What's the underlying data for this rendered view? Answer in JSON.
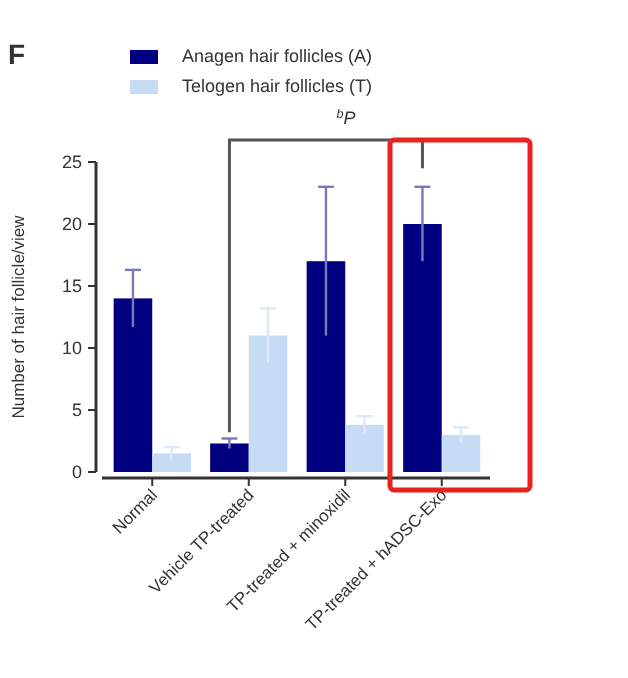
{
  "chart_data": {
    "type": "bar",
    "title": "F",
    "ylabel": "Number of hair follicle/view",
    "categories": [
      "Normal",
      "Vehicle TP-treated",
      "TP-treated + minoxidil",
      "TP-treated + hADSC-Exo"
    ],
    "series": [
      {
        "name": "Anagen hair follicles (A)",
        "color": "#000080",
        "values": [
          14,
          2.3,
          17,
          20
        ],
        "errors": [
          2.3,
          0.4,
          6,
          3
        ]
      },
      {
        "name": "Telogen hair follicles (T)",
        "color": "#c6dcf5",
        "values": [
          1.5,
          11,
          3.8,
          3
        ],
        "errors": [
          0.5,
          2.2,
          0.7,
          0.6
        ]
      }
    ],
    "ylim": [
      0,
      25
    ],
    "yticks": [
      0,
      5,
      10,
      15,
      20,
      25
    ],
    "legend": "top",
    "grid": false,
    "annotations": [
      "$^{b}$P"
    ]
  }
}
